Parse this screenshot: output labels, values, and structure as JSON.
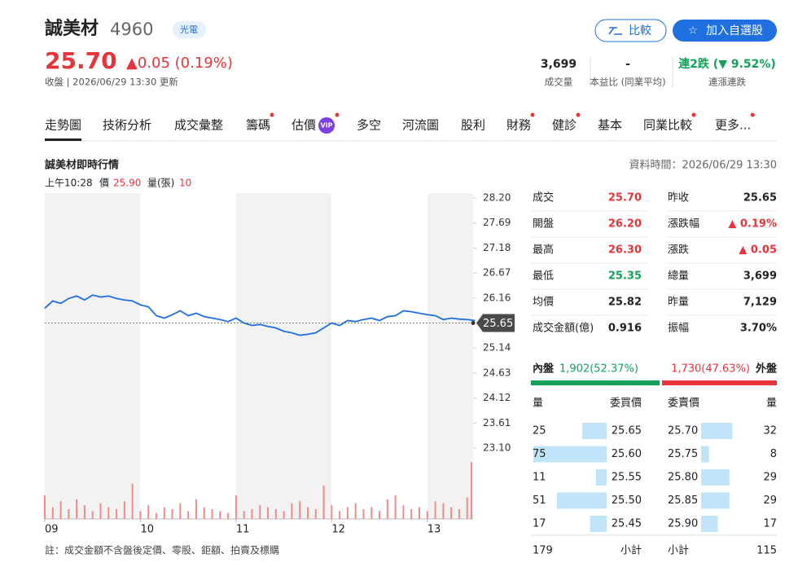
{
  "header": {
    "name": "誠美材",
    "code": "4960",
    "sector": "光電",
    "price": "25.70",
    "change": "▲0.05 (0.19%)",
    "status": "收盤 | 2026/06/29 13:30 更新"
  },
  "buttons": [
    "比較",
    "加入自選股"
  ],
  "stats": [
    {
      "value": "3,699",
      "label": "成交量"
    },
    {
      "value": "-",
      "label": "本益比 (同業平均)"
    },
    {
      "value": "連2跌 (▼ 9.52%)",
      "label": "連漲連跌"
    }
  ],
  "tabs": [
    {
      "label": "走勢圖",
      "active": true
    },
    {
      "label": "技術分析"
    },
    {
      "label": "成交彙整"
    },
    {
      "label": "籌碼",
      "dot": true
    },
    {
      "label": "估價",
      "badge": "VIP",
      "dot": true
    },
    {
      "label": "多空"
    },
    {
      "label": "河流圖"
    },
    {
      "label": "股利"
    },
    {
      "label": "財務",
      "dot": true
    },
    {
      "label": "健診",
      "dot": true
    },
    {
      "label": "基本"
    },
    {
      "label": "同業比較",
      "dot": true
    },
    {
      "label": "更多...",
      "dot": true
    }
  ],
  "chart_header": {
    "title": "誠美材即時行情",
    "data_time": "資料時間：2026/06/29 13:30",
    "cursor_time": "上午10:28",
    "price_label": "價",
    "price": "25.90",
    "volume_label": "量(張)",
    "volume": "10"
  },
  "chart_data": {
    "type": "line",
    "x": [
      0,
      5,
      10,
      15,
      20,
      25,
      30,
      35,
      40,
      45,
      50,
      55,
      60,
      65,
      70,
      75,
      80,
      85,
      90,
      95,
      100,
      105,
      110,
      115,
      120,
      125,
      130,
      135,
      140,
      145,
      150,
      155,
      160,
      165,
      170,
      175,
      180,
      185,
      190,
      195,
      200,
      205,
      210,
      215,
      220,
      225,
      230,
      235,
      240,
      245,
      250,
      255,
      260,
      265,
      270
    ],
    "xlim": [
      0,
      270
    ],
    "xticks": [
      {
        "value": 0,
        "label": "09"
      },
      {
        "value": 60,
        "label": "10"
      },
      {
        "value": 120,
        "label": "11"
      },
      {
        "value": 180,
        "label": "12"
      },
      {
        "value": 240,
        "label": "13"
      }
    ],
    "ylim": [
      23.1,
      28.2
    ],
    "yticks": [
      {
        "value": 28.2,
        "label": "28.20"
      },
      27.69,
      27.18,
      26.67,
      26.16,
      25.65,
      25.14,
      24.63,
      24.12,
      23.61,
      {
        "value": 23.1,
        "label": "23.10"
      }
    ],
    "reference": 25.65,
    "y2lim": [
      0,
      300
    ],
    "series": [
      {
        "color": "#1f6fe0",
        "values": [
          25.95,
          26.1,
          26.05,
          26.15,
          26.2,
          26.12,
          26.22,
          26.18,
          26.2,
          26.15,
          26.12,
          26.1,
          26.02,
          25.98,
          25.8,
          25.75,
          25.82,
          25.9,
          25.8,
          25.85,
          25.78,
          25.75,
          25.72,
          25.68,
          25.75,
          25.65,
          25.6,
          25.62,
          25.58,
          25.55,
          25.48,
          25.45,
          25.4,
          25.42,
          25.45,
          25.55,
          25.65,
          25.6,
          25.7,
          25.68,
          25.72,
          25.75,
          25.7,
          25.78,
          25.8,
          25.9,
          25.88,
          25.85,
          25.82,
          25.8,
          25.72,
          25.75,
          25.73,
          25.72,
          25.7
        ]
      },
      {
        "type": "bar",
        "axis": "y2",
        "color": "#f08a8a",
        "values": [
          120,
          60,
          90,
          50,
          100,
          70,
          40,
          80,
          60,
          50,
          90,
          180,
          40,
          70,
          30,
          60,
          50,
          80,
          40,
          100,
          60,
          50,
          40,
          30,
          120,
          40,
          50,
          70,
          60,
          50,
          40,
          80,
          90,
          60,
          50,
          170,
          70,
          40,
          60,
          80,
          50,
          60,
          40,
          100,
          120,
          70,
          50,
          60,
          40,
          90,
          80,
          60,
          50,
          110,
          290
        ]
      }
    ]
  },
  "quote": {
    "left": [
      [
        "成交",
        "25.70"
      ],
      [
        "開盤",
        "26.20"
      ],
      [
        "最高",
        "26.30"
      ],
      [
        "最低",
        "25.35"
      ],
      [
        "均價",
        "25.82"
      ],
      [
        "成交金額(億)",
        "0.916"
      ]
    ],
    "right": [
      [
        "昨收",
        "25.65"
      ],
      [
        "漲跌幅",
        "▲ 0.19%"
      ],
      [
        "漲跌",
        "▲ 0.05"
      ],
      [
        "總量",
        "3,699"
      ],
      [
        "昨量",
        "7,129"
      ],
      [
        "振幅",
        "3.70%"
      ]
    ]
  },
  "inner_outer": {
    "inner_label": "內盤",
    "inner": "1,902(52.37%)",
    "outer": "1,730(47.63%)",
    "outer_label": "外盤"
  },
  "order_book": {
    "headers": [
      "量",
      "委買價",
      "委賣價",
      "量"
    ],
    "bids": [
      {
        "volume": 25,
        "price": "25.65"
      },
      {
        "volume": 75,
        "price": "25.60"
      },
      {
        "volume": 11,
        "price": "25.55"
      },
      {
        "volume": 51,
        "price": "25.50"
      },
      {
        "volume": 17,
        "price": "25.45"
      }
    ],
    "asks": [
      {
        "price": "25.70",
        "volume": 32
      },
      {
        "price": "25.75",
        "volume": 8
      },
      {
        "price": "25.80",
        "volume": 29
      },
      {
        "price": "25.85",
        "volume": 29
      },
      {
        "price": "25.90",
        "volume": 17
      }
    ],
    "totals": {
      "bid": 179,
      "bid_label": "小計",
      "ask_label": "小計",
      "ask": 115
    }
  },
  "footnote": "註：成交金額不含盤後定價、零股、鉅額、拍賣及標購"
}
